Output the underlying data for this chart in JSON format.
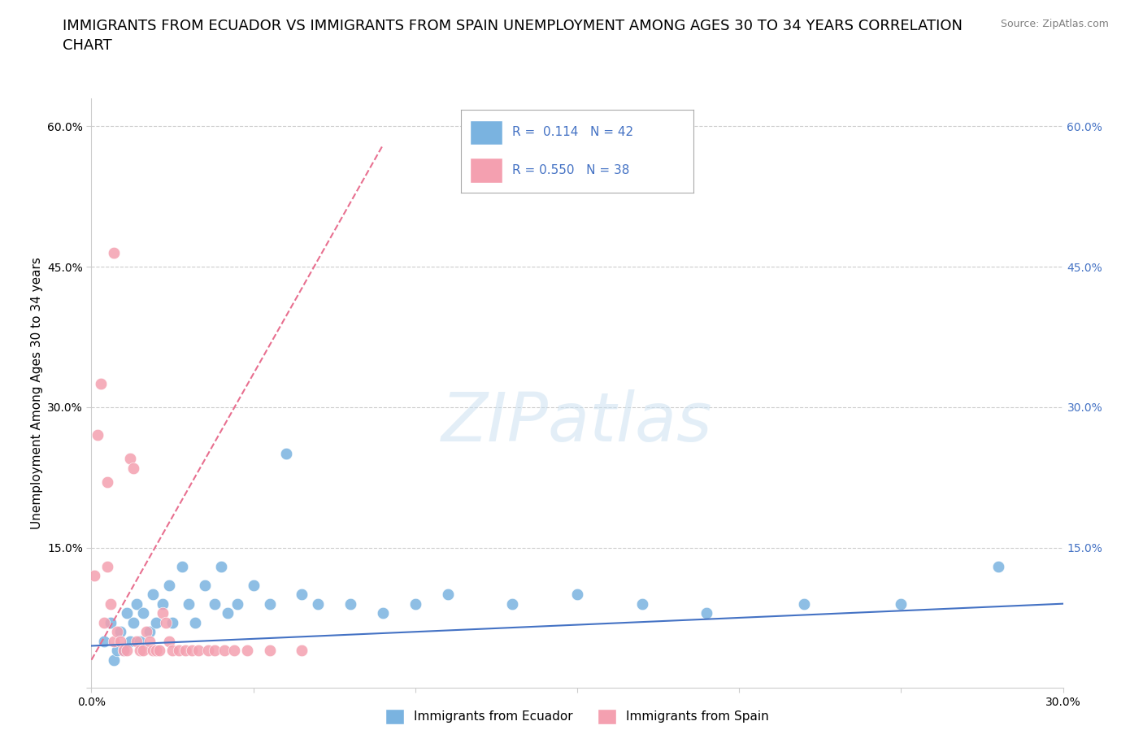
{
  "title": "IMMIGRANTS FROM ECUADOR VS IMMIGRANTS FROM SPAIN UNEMPLOYMENT AMONG AGES 30 TO 34 YEARS CORRELATION\nCHART",
  "source_text": "Source: ZipAtlas.com",
  "ylabel": "Unemployment Among Ages 30 to 34 years",
  "xlim": [
    0.0,
    0.3
  ],
  "ylim": [
    0.0,
    0.63
  ],
  "xticks": [
    0.0,
    0.05,
    0.1,
    0.15,
    0.2,
    0.25,
    0.3
  ],
  "xtick_labels": [
    "0.0%",
    "",
    "",
    "",
    "",
    "",
    "30.0%"
  ],
  "yticks": [
    0.0,
    0.15,
    0.3,
    0.45,
    0.6
  ],
  "ytick_labels": [
    "",
    "15.0%",
    "30.0%",
    "45.0%",
    "60.0%"
  ],
  "ecuador_color": "#7ab3e0",
  "spain_color": "#f4a0b0",
  "ecuador_line_color": "#4472c4",
  "spain_line_color": "#e87090",
  "ecuador_R": "0.114",
  "ecuador_N": "42",
  "spain_R": "0.550",
  "spain_N": "38",
  "watermark": "ZIPatlas",
  "ecuador_scatter": [
    [
      0.004,
      0.05
    ],
    [
      0.006,
      0.07
    ],
    [
      0.007,
      0.03
    ],
    [
      0.008,
      0.04
    ],
    [
      0.009,
      0.06
    ],
    [
      0.01,
      0.04
    ],
    [
      0.011,
      0.08
    ],
    [
      0.012,
      0.05
    ],
    [
      0.013,
      0.07
    ],
    [
      0.014,
      0.09
    ],
    [
      0.015,
      0.05
    ],
    [
      0.016,
      0.08
    ],
    [
      0.018,
      0.06
    ],
    [
      0.019,
      0.1
    ],
    [
      0.02,
      0.07
    ],
    [
      0.022,
      0.09
    ],
    [
      0.024,
      0.11
    ],
    [
      0.025,
      0.07
    ],
    [
      0.028,
      0.13
    ],
    [
      0.03,
      0.09
    ],
    [
      0.032,
      0.07
    ],
    [
      0.035,
      0.11
    ],
    [
      0.038,
      0.09
    ],
    [
      0.04,
      0.13
    ],
    [
      0.042,
      0.08
    ],
    [
      0.045,
      0.09
    ],
    [
      0.05,
      0.11
    ],
    [
      0.055,
      0.09
    ],
    [
      0.06,
      0.25
    ],
    [
      0.065,
      0.1
    ],
    [
      0.07,
      0.09
    ],
    [
      0.08,
      0.09
    ],
    [
      0.09,
      0.08
    ],
    [
      0.1,
      0.09
    ],
    [
      0.11,
      0.1
    ],
    [
      0.13,
      0.09
    ],
    [
      0.15,
      0.1
    ],
    [
      0.17,
      0.09
    ],
    [
      0.19,
      0.08
    ],
    [
      0.22,
      0.09
    ],
    [
      0.25,
      0.09
    ],
    [
      0.28,
      0.13
    ]
  ],
  "spain_scatter": [
    [
      0.001,
      0.12
    ],
    [
      0.002,
      0.27
    ],
    [
      0.003,
      0.325
    ],
    [
      0.004,
      0.07
    ],
    [
      0.005,
      0.13
    ],
    [
      0.005,
      0.22
    ],
    [
      0.006,
      0.09
    ],
    [
      0.007,
      0.05
    ],
    [
      0.007,
      0.465
    ],
    [
      0.008,
      0.06
    ],
    [
      0.009,
      0.05
    ],
    [
      0.01,
      0.04
    ],
    [
      0.011,
      0.04
    ],
    [
      0.012,
      0.245
    ],
    [
      0.013,
      0.235
    ],
    [
      0.014,
      0.05
    ],
    [
      0.015,
      0.04
    ],
    [
      0.016,
      0.04
    ],
    [
      0.017,
      0.06
    ],
    [
      0.018,
      0.05
    ],
    [
      0.019,
      0.04
    ],
    [
      0.02,
      0.04
    ],
    [
      0.021,
      0.04
    ],
    [
      0.022,
      0.08
    ],
    [
      0.023,
      0.07
    ],
    [
      0.024,
      0.05
    ],
    [
      0.025,
      0.04
    ],
    [
      0.027,
      0.04
    ],
    [
      0.029,
      0.04
    ],
    [
      0.031,
      0.04
    ],
    [
      0.033,
      0.04
    ],
    [
      0.036,
      0.04
    ],
    [
      0.038,
      0.04
    ],
    [
      0.041,
      0.04
    ],
    [
      0.044,
      0.04
    ],
    [
      0.048,
      0.04
    ],
    [
      0.055,
      0.04
    ],
    [
      0.065,
      0.04
    ]
  ],
  "ecuador_trendline": [
    [
      0.0,
      0.045
    ],
    [
      0.3,
      0.09
    ]
  ],
  "spain_trendline": [
    [
      0.0,
      0.03
    ],
    [
      0.09,
      0.58
    ]
  ],
  "background_color": "#ffffff",
  "grid_color": "#cccccc",
  "title_fontsize": 13,
  "axis_label_fontsize": 11,
  "tick_fontsize": 10,
  "legend_text_color": "#4472c4"
}
